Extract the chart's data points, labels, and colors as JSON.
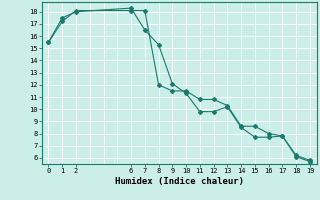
{
  "title": "",
  "xlabel": "Humidex (Indice chaleur)",
  "bg_color": "#cceee8",
  "grid_color": "#ffffff",
  "line_color": "#1a7a6e",
  "xlim": [
    -0.5,
    19.5
  ],
  "ylim": [
    5.5,
    18.8
  ],
  "xticks": [
    0,
    1,
    2,
    6,
    7,
    8,
    9,
    10,
    11,
    12,
    13,
    14,
    15,
    16,
    17,
    18,
    19
  ],
  "yticks": [
    6,
    7,
    8,
    9,
    10,
    11,
    12,
    13,
    14,
    15,
    16,
    17,
    18
  ],
  "series1_x": [
    0,
    1,
    2,
    6,
    7,
    8,
    9,
    10,
    11,
    12,
    13,
    14,
    15,
    16,
    17,
    18,
    19
  ],
  "series1_y": [
    15.5,
    17.5,
    18.0,
    18.3,
    16.5,
    15.3,
    12.1,
    11.3,
    9.8,
    9.8,
    10.2,
    8.5,
    7.7,
    7.7,
    7.8,
    6.1,
    5.7
  ],
  "series2_x": [
    0,
    1,
    2,
    6,
    7,
    8,
    9,
    10,
    11,
    12,
    13,
    14,
    15,
    16,
    17,
    18,
    19
  ],
  "series2_y": [
    15.5,
    17.2,
    18.1,
    18.1,
    18.1,
    12.0,
    11.5,
    11.5,
    10.8,
    10.8,
    10.3,
    8.6,
    8.6,
    8.0,
    7.8,
    6.2,
    5.8
  ]
}
